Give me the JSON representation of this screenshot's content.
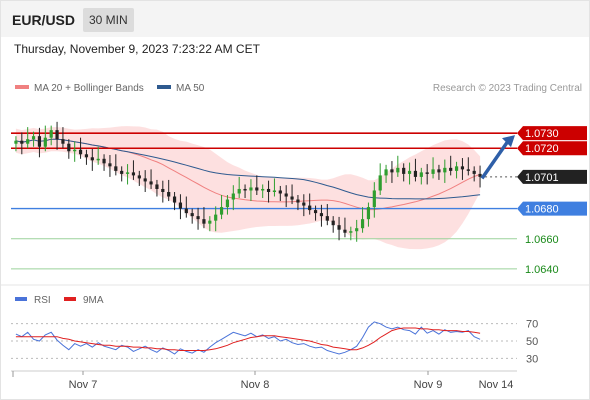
{
  "header": {
    "symbol": "EUR/USD",
    "interval": "30 MIN"
  },
  "datetime": "Thursday, November 9, 2023 7:23:22 AM CET",
  "colors": {
    "ma20": "#f08080",
    "ma50": "#2e5a8f",
    "band": "#fcd5d5",
    "bull": "#2f9e2f",
    "bear": "#222222",
    "resistance": "#cc0000",
    "support": "#3f7fe0",
    "support_low": "#9bd29b",
    "rsi": "#4a73d9",
    "rsi_ma": "#e02020",
    "arrow": "#2e5fa8"
  },
  "legend": {
    "ma20": "MA 20 + Bollinger Bands",
    "ma50": "MA 50",
    "credit": "Research © 2023 Trading Central",
    "rsi": "RSI",
    "rsi_ma": "9MA"
  },
  "chart_data": [
    {
      "type": "candlestick",
      "title": "EUR/USD 30 MIN",
      "ylim": [
        1.0632,
        1.0748
      ],
      "x_ticks": [
        "Nov 7",
        "Nov 8",
        "Nov 9",
        "Nov 14"
      ],
      "current_price": "1.0701",
      "levels": [
        {
          "value": 1.073,
          "label": "1.0730",
          "role": "resistance"
        },
        {
          "value": 1.072,
          "label": "1.0720",
          "role": "resistance"
        },
        {
          "value": 1.068,
          "label": "1.0680",
          "role": "support"
        },
        {
          "value": 1.066,
          "label": "1.0660",
          "role": "support_low"
        },
        {
          "value": 1.064,
          "label": "1.0640",
          "role": "support_low"
        }
      ],
      "forecast_arrow": {
        "from": 1.07,
        "to": 1.073,
        "direction": "up"
      },
      "close": [
        1.0725,
        1.0723,
        1.0726,
        1.0728,
        1.0721,
        1.0727,
        1.0732,
        1.0726,
        1.0723,
        1.0718,
        1.0719,
        1.0716,
        1.0714,
        1.0712,
        1.0713,
        1.071,
        1.0708,
        1.0705,
        1.0703,
        1.0704,
        1.0702,
        1.07,
        1.0698,
        1.0696,
        1.0693,
        1.0691,
        1.0688,
        1.0684,
        1.068,
        1.0677,
        1.0675,
        1.0673,
        1.067,
        1.0672,
        1.0676,
        1.0681,
        1.0686,
        1.069,
        1.0693,
        1.0692,
        1.0694,
        1.0692,
        1.0693,
        1.0691,
        1.0692,
        1.069,
        1.0688,
        1.0686,
        1.0684,
        1.0682,
        1.0679,
        1.0677,
        1.0675,
        1.0672,
        1.0669,
        1.0666,
        1.0664,
        1.0665,
        1.0667,
        1.0673,
        1.0681,
        1.0692,
        1.0702,
        1.0706,
        1.0704,
        1.0707,
        1.0703,
        1.0705,
        1.0701,
        1.0704,
        1.0703,
        1.0706,
        1.0704,
        1.0707,
        1.0705,
        1.0708,
        1.0706,
        1.0705,
        1.0703,
        1.0701
      ]
    },
    {
      "type": "line",
      "title": "RSI",
      "ylim": [
        20,
        80
      ],
      "y_ticks": [
        30,
        50,
        70
      ],
      "series": [
        {
          "name": "RSI",
          "values": [
            58,
            55,
            60,
            52,
            50,
            57,
            60,
            51,
            45,
            40,
            47,
            44,
            47,
            43,
            48,
            44,
            42,
            40,
            45,
            43,
            38,
            41,
            44,
            40,
            37,
            42,
            39,
            35,
            41,
            38,
            36,
            40,
            37,
            43,
            48,
            52,
            56,
            60,
            58,
            56,
            59,
            55,
            57,
            53,
            55,
            50,
            52,
            48,
            46,
            47,
            44,
            42,
            43,
            39,
            37,
            35,
            37,
            40,
            44,
            54,
            66,
            72,
            70,
            66,
            64,
            66,
            63,
            62,
            58,
            66,
            59,
            62,
            58,
            63,
            60,
            61,
            60,
            62,
            55,
            52
          ]
        },
        {
          "name": "9MA",
          "values": [
            55,
            55,
            55,
            55,
            55,
            55,
            55,
            55,
            53,
            52,
            50,
            49,
            48,
            47,
            46,
            45,
            45,
            44,
            44,
            44,
            43,
            43,
            42,
            42,
            41,
            41,
            40,
            40,
            39,
            39,
            39,
            39,
            39,
            40,
            41,
            43,
            45,
            48,
            50,
            52,
            54,
            55,
            56,
            56,
            56,
            55,
            54,
            53,
            52,
            51,
            50,
            48,
            46,
            45,
            43,
            42,
            41,
            40,
            40,
            42,
            45,
            49,
            54,
            58,
            62,
            64,
            65,
            65,
            65,
            64,
            64,
            63,
            63,
            62,
            62,
            62,
            61,
            61,
            60,
            59
          ]
        }
      ]
    }
  ]
}
